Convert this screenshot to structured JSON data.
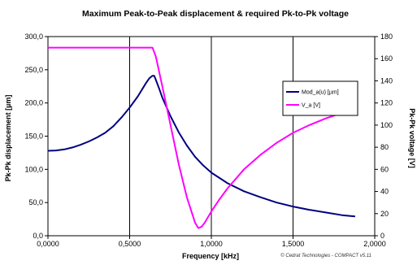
{
  "chart_data": {
    "type": "line",
    "title": "Maximum Peak-to-Peak displacement & required Pk-to-Pk voltage",
    "xlabel": "Frequency [kHz]",
    "ylabel": "Pk-Pk displacement [µm]",
    "y2label": "Pk-Pk voltage [V]",
    "xlim": [
      0,
      2
    ],
    "ylim": [
      0,
      300
    ],
    "y2lim": [
      0,
      180
    ],
    "x_ticks": [
      "0,0000",
      "0,5000",
      "1,0000",
      "1,5000",
      "2,0000"
    ],
    "y_ticks": [
      "0,0",
      "50,0",
      "100,0",
      "150,0",
      "200,0",
      "250,0",
      "300,0"
    ],
    "y2_ticks": [
      "0",
      "20",
      "40",
      "60",
      "80",
      "100",
      "120",
      "140",
      "160",
      "180"
    ],
    "grid": "vertical",
    "legend_position": "right",
    "series": [
      {
        "name": "Mod_a(u) [µm]",
        "axis": "left",
        "color": "#000080",
        "x": [
          0,
          0.05,
          0.1,
          0.15,
          0.2,
          0.25,
          0.3,
          0.35,
          0.4,
          0.45,
          0.5,
          0.55,
          0.6,
          0.62,
          0.64,
          0.65,
          0.66,
          0.68,
          0.7,
          0.75,
          0.8,
          0.85,
          0.9,
          0.95,
          1.0,
          1.1,
          1.2,
          1.3,
          1.4,
          1.5,
          1.6,
          1.7,
          1.8,
          1.88
        ],
        "y": [
          128,
          128.5,
          130,
          133,
          137,
          142,
          148,
          155,
          165,
          178,
          193,
          210,
          230,
          237,
          241,
          241,
          235,
          222,
          208,
          180,
          156,
          136,
          119,
          106,
          95,
          79,
          67,
          58,
          50,
          44,
          39,
          35,
          31,
          29
        ]
      },
      {
        "name": "V_a [V]",
        "axis": "right",
        "color": "#ff00ff",
        "x": [
          0,
          0.1,
          0.2,
          0.3,
          0.4,
          0.5,
          0.6,
          0.64,
          0.66,
          0.7,
          0.75,
          0.8,
          0.85,
          0.9,
          0.92,
          0.94,
          0.96,
          1.0,
          1.05,
          1.1,
          1.2,
          1.3,
          1.4,
          1.5,
          1.6,
          1.7,
          1.8,
          1.88
        ],
        "y": [
          170,
          170,
          170,
          170,
          170,
          170,
          170,
          170,
          162,
          135,
          100,
          65,
          35,
          12,
          7,
          8,
          12,
          22,
          33,
          43,
          60,
          73,
          84,
          93,
          100,
          106,
          111,
          115
        ]
      }
    ],
    "annotation": "© Cedrat Technologies - COMPACT v5.11"
  }
}
